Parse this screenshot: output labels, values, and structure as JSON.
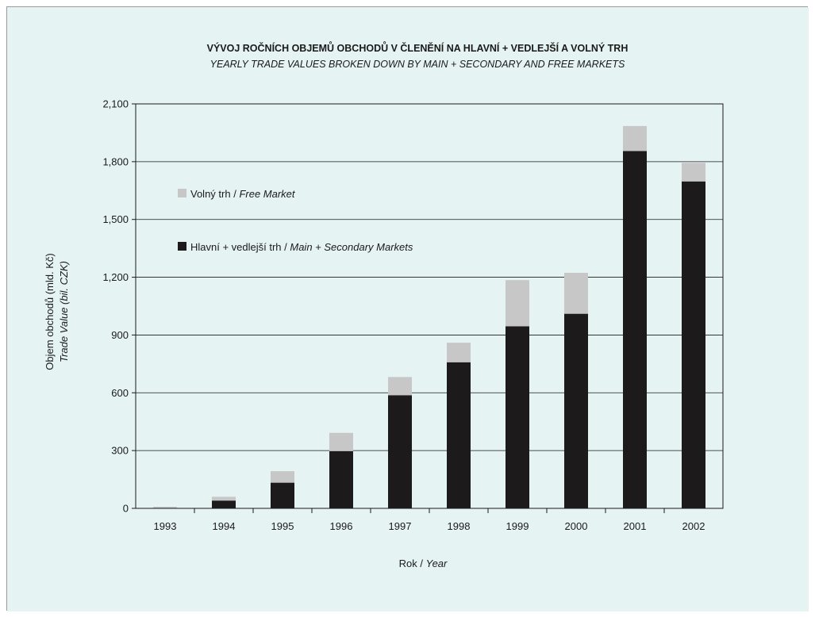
{
  "colors": {
    "background": "#e6f3f3",
    "main_markets": "#1c1a1a",
    "free_market": "#c7c7c7",
    "grid": "#1a1a1a"
  },
  "chart_data": {
    "type": "bar",
    "stacked": true,
    "title": "VÝVOJ ROČNÍCH OBJEMŮ OBCHODŮ V ČLENĚNÍ NA HLAVNÍ + VEDLEJŠÍ A VOLNÝ TRH",
    "subtitle": "YEARLY TRADE VALUES BROKEN DOWN BY MAIN + SECONDARY AND FREE MARKETS",
    "xlabel": {
      "cz": "Rok /",
      "en": "Year"
    },
    "ylabel": {
      "cz": "Objem obchodů (mld. Kč)",
      "en": "Trade Value (bil. CZK)"
    },
    "categories": [
      "1993",
      "1994",
      "1995",
      "1996",
      "1997",
      "1998",
      "1999",
      "2000",
      "2001",
      "2002"
    ],
    "ylim": [
      0,
      2100
    ],
    "yticks": [
      0,
      300,
      600,
      900,
      1200,
      1500,
      1800,
      2100
    ],
    "ytick_labels": [
      "0",
      "300",
      "600",
      "900",
      "1,200",
      "1,500",
      "1,800",
      "2,100"
    ],
    "grid": true,
    "legend_position": "top-left",
    "series": [
      {
        "key": "main",
        "name_cz": "Hlavní + vedlejší trh /",
        "name_en": "Main + Secondary Markets",
        "values": [
          2,
          40,
          133,
          297,
          587,
          758,
          945,
          1010,
          1855,
          1697
        ]
      },
      {
        "key": "free",
        "name_cz": "Volný trh /",
        "name_en": "Free Market",
        "values": [
          6,
          20,
          60,
          95,
          95,
          102,
          240,
          213,
          130,
          97
        ]
      }
    ]
  }
}
